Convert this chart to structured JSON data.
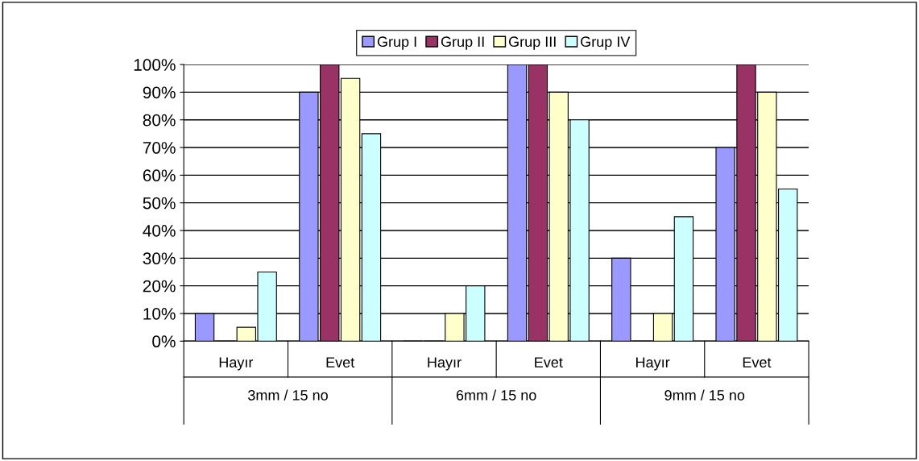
{
  "chart_data": {
    "type": "bar",
    "categories": [
      "Hayır",
      "Evet",
      "Hayır",
      "Evet",
      "Hayır",
      "Evet"
    ],
    "series": [
      {
        "name": "Grup I",
        "color": "#9999ff",
        "values": [
          10,
          90,
          0,
          100,
          30,
          70
        ]
      },
      {
        "name": "Grup II",
        "color": "#993366",
        "values": [
          0,
          100,
          0,
          100,
          0,
          100
        ]
      },
      {
        "name": "Grup III",
        "color": "#ffffcc",
        "values": [
          5,
          95,
          10,
          90,
          10,
          90
        ]
      },
      {
        "name": "Grup IV",
        "color": "#ccffff",
        "values": [
          25,
          75,
          20,
          80,
          45,
          55
        ]
      }
    ],
    "annotations": [
      "3mm / 15 no",
      "6mm / 15 no",
      "9mm / 15 no"
    ],
    "ylim": [
      0,
      100
    ],
    "yticks": [
      {
        "value": 0,
        "label": "0%"
      },
      {
        "value": 10,
        "label": "10%"
      },
      {
        "value": 20,
        "label": "20%"
      },
      {
        "value": 30,
        "label": "30%"
      },
      {
        "value": 40,
        "label": "40%"
      },
      {
        "value": 50,
        "label": "50%"
      },
      {
        "value": 60,
        "label": "60%"
      },
      {
        "value": 70,
        "label": "70%"
      },
      {
        "value": 80,
        "label": "80%"
      },
      {
        "value": 90,
        "label": "90%"
      },
      {
        "value": 100,
        "label": "100%"
      }
    ],
    "grid": "y",
    "legend": "top"
  }
}
